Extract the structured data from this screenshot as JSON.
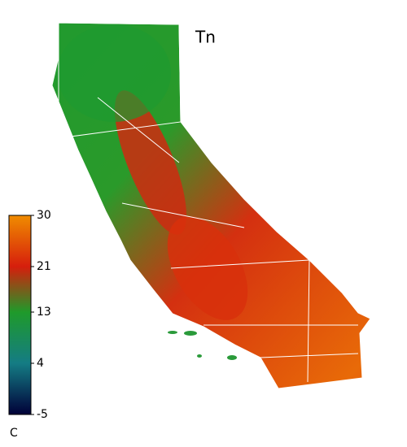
{
  "title": "Tn",
  "colorbar": {
    "label": "C",
    "lim": [
      -5,
      30
    ],
    "ticks": [
      -5,
      4,
      13,
      21,
      30
    ],
    "colors": [
      "#000038",
      "#147c84",
      "#1f9a2a",
      "#d61e0c",
      "#f08c00"
    ]
  }
}
